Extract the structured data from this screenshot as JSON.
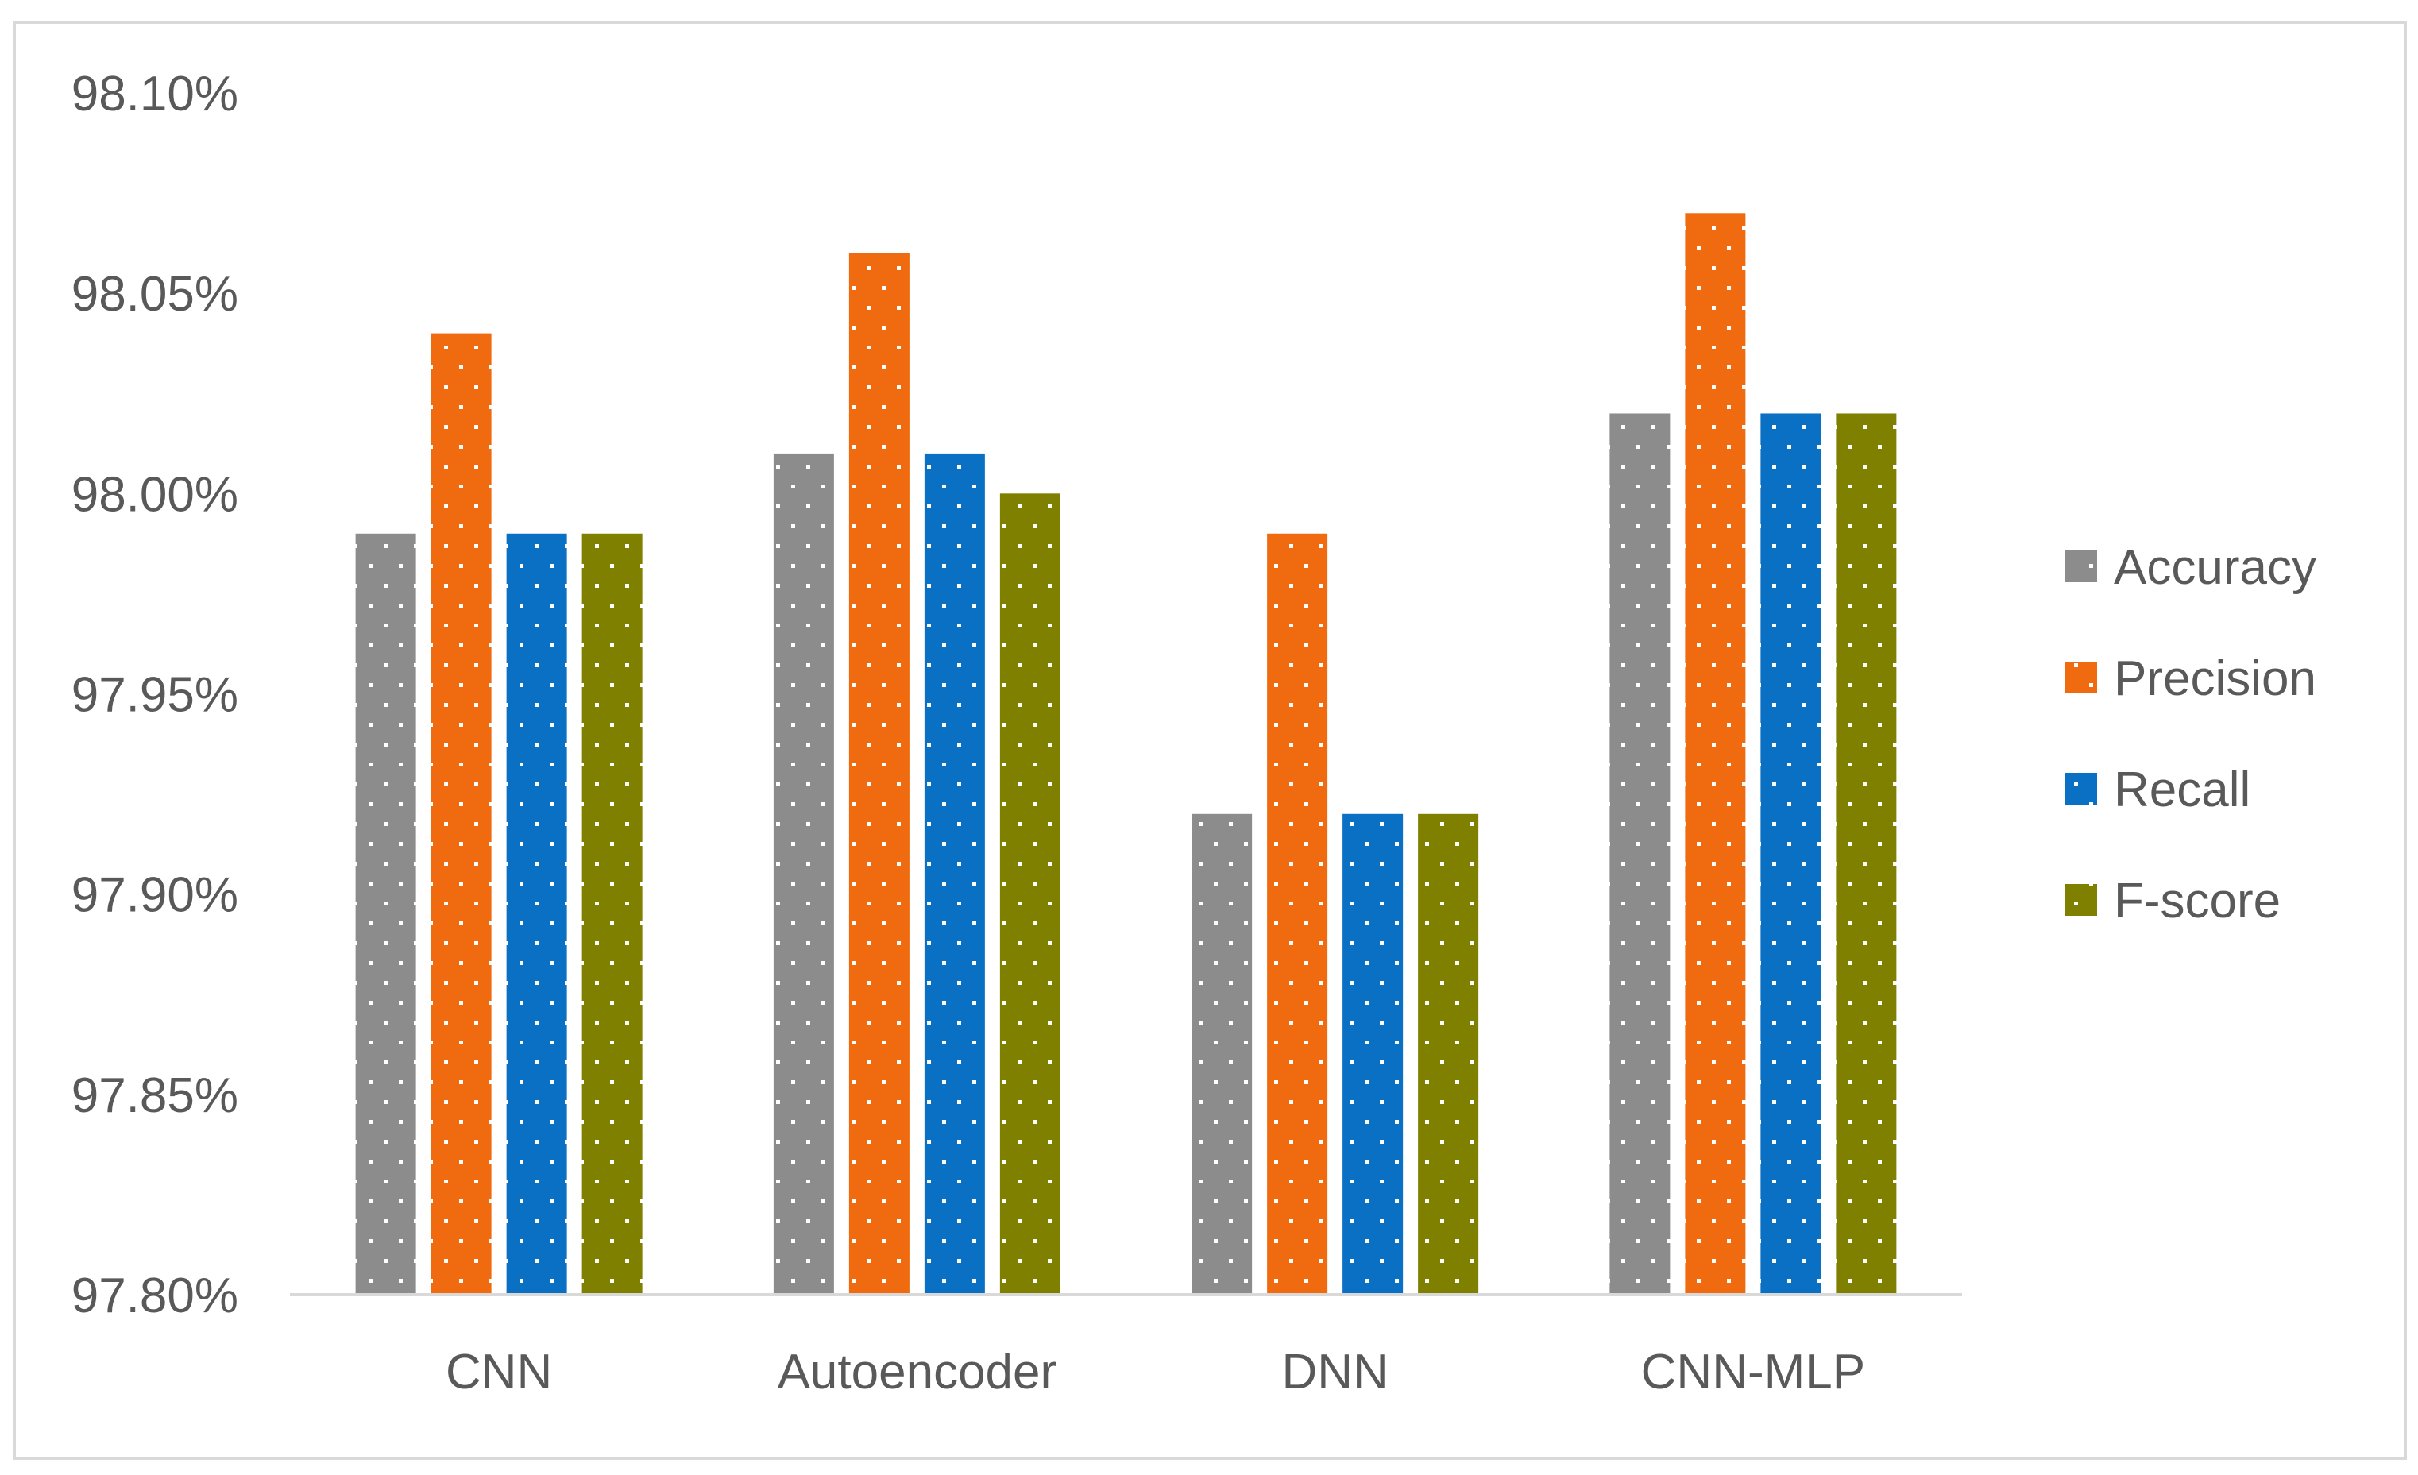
{
  "chart_data": {
    "type": "bar",
    "categories": [
      "CNN",
      "Autoencoder",
      "DNN",
      "CNN-MLP"
    ],
    "series": [
      {
        "name": "Accuracy",
        "color": "#8c8c8c",
        "values": [
          97.99,
          98.01,
          97.92,
          98.02
        ]
      },
      {
        "name": "Precision",
        "color": "#f06a10",
        "values": [
          98.04,
          98.06,
          97.99,
          98.07
        ]
      },
      {
        "name": "Recall",
        "color": "#0a70c4",
        "values": [
          97.99,
          98.01,
          97.92,
          98.02
        ]
      },
      {
        "name": "F-score",
        "color": "#7f7f00",
        "values": [
          97.99,
          98.0,
          97.92,
          98.02
        ]
      }
    ],
    "y_ticks": [
      "97.80%",
      "97.85%",
      "97.90%",
      "97.95%",
      "98.00%",
      "98.05%",
      "98.10%"
    ],
    "ylim": [
      97.8,
      98.1
    ],
    "title": "",
    "xlabel": "",
    "ylabel": "",
    "grid": false,
    "legend_position": "right",
    "bar_pattern": "white-dots"
  }
}
